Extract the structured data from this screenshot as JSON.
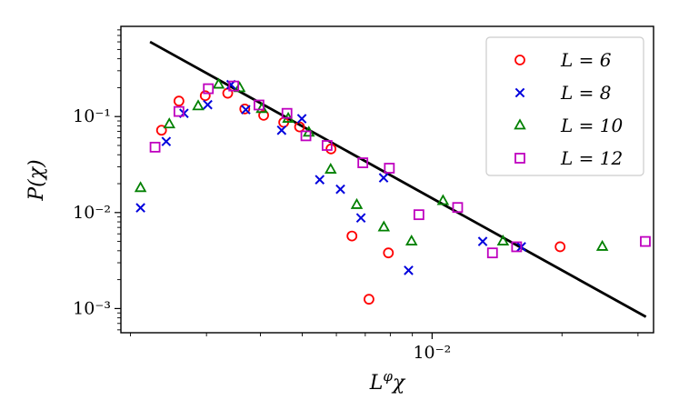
{
  "chart_data": {
    "type": "scatter",
    "x_scale": "log",
    "y_scale": "log",
    "xlim": [
      0.0019,
      0.0326
    ],
    "ylim": [
      0.00056,
      0.87
    ],
    "xlabel": "L^φχ",
    "ylabel": "P(χ)",
    "x_ticks": [
      {
        "value": 0.01,
        "label": "10⁻²"
      }
    ],
    "y_ticks": [
      {
        "value": 0.001,
        "label": "10⁻³"
      },
      {
        "value": 0.01,
        "label": "10⁻²"
      },
      {
        "value": 0.1,
        "label": "10⁻¹"
      }
    ],
    "legend_position": "top-right",
    "series": [
      {
        "name": "L = 6",
        "marker": "circle",
        "color": "#ff0000",
        "points": [
          [
            0.00236,
            0.072
          ],
          [
            0.00259,
            0.145
          ],
          [
            0.00298,
            0.165
          ],
          [
            0.00336,
            0.175
          ],
          [
            0.00368,
            0.12
          ],
          [
            0.00407,
            0.103
          ],
          [
            0.00453,
            0.087
          ],
          [
            0.00493,
            0.078
          ],
          [
            0.00583,
            0.046
          ],
          [
            0.00652,
            0.0057
          ],
          [
            0.00714,
            0.00125
          ],
          [
            0.00792,
            0.0038
          ],
          [
            0.0198,
            0.0044
          ]
        ]
      },
      {
        "name": "L = 8",
        "marker": "x",
        "color": "#0000dd",
        "points": [
          [
            0.00211,
            0.0112
          ],
          [
            0.00242,
            0.055
          ],
          [
            0.00266,
            0.108
          ],
          [
            0.00302,
            0.133
          ],
          [
            0.00342,
            0.215
          ],
          [
            0.0037,
            0.118
          ],
          [
            0.00448,
            0.072
          ],
          [
            0.00499,
            0.095
          ],
          [
            0.00549,
            0.022
          ],
          [
            0.00613,
            0.0175
          ],
          [
            0.00684,
            0.0088
          ],
          [
            0.00772,
            0.023
          ],
          [
            0.00882,
            0.0025
          ],
          [
            0.0131,
            0.005
          ],
          [
            0.0161,
            0.0044
          ]
        ]
      },
      {
        "name": "L = 10",
        "marker": "triangle",
        "color": "#008000",
        "points": [
          [
            0.00211,
            0.018
          ],
          [
            0.00246,
            0.083
          ],
          [
            0.00287,
            0.128
          ],
          [
            0.0032,
            0.215
          ],
          [
            0.00358,
            0.198
          ],
          [
            0.00403,
            0.12
          ],
          [
            0.00464,
            0.095
          ],
          [
            0.00518,
            0.068
          ],
          [
            0.00582,
            0.028
          ],
          [
            0.00669,
            0.012
          ],
          [
            0.00773,
            0.007
          ],
          [
            0.00896,
            0.005
          ],
          [
            0.0106,
            0.0132
          ],
          [
            0.0146,
            0.005
          ],
          [
            0.0248,
            0.0044
          ]
        ]
      },
      {
        "name": "L = 12",
        "marker": "square",
        "color": "#bf00bf",
        "points": [
          [
            0.00228,
            0.048
          ],
          [
            0.00259,
            0.113
          ],
          [
            0.00303,
            0.195
          ],
          [
            0.00347,
            0.208
          ],
          [
            0.00397,
            0.132
          ],
          [
            0.00461,
            0.108
          ],
          [
            0.0051,
            0.063
          ],
          [
            0.00571,
            0.05
          ],
          [
            0.00691,
            0.033
          ],
          [
            0.00796,
            0.029
          ],
          [
            0.00932,
            0.0095
          ],
          [
            0.01146,
            0.0113
          ],
          [
            0.0138,
            0.0038
          ],
          [
            0.0157,
            0.0044
          ],
          [
            0.0312,
            0.005
          ]
        ]
      }
    ],
    "fit_line": {
      "color": "#000000",
      "points": [
        [
          0.00222,
          0.6
        ],
        [
          0.0313,
          0.00082
        ]
      ]
    }
  }
}
